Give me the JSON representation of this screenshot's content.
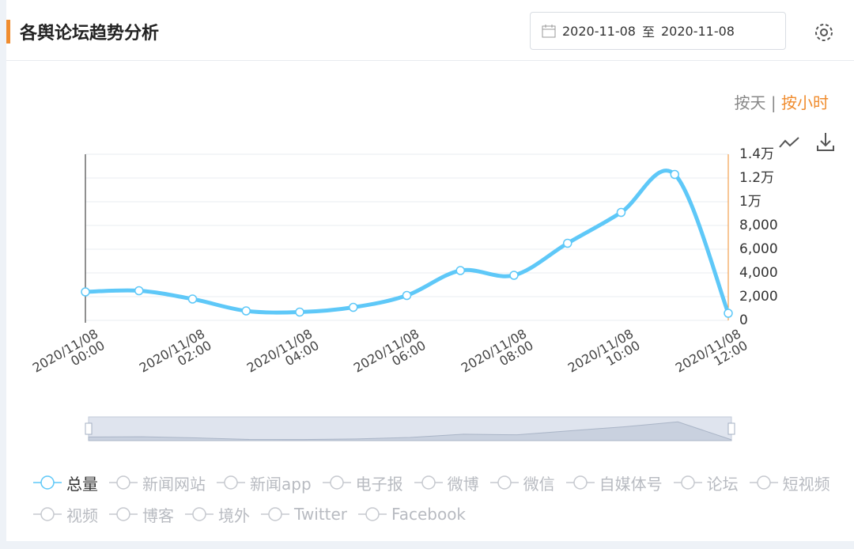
{
  "header": {
    "title": "各舆论坛趋势分析",
    "date_start": "2020-11-08",
    "date_sep": "至",
    "date_end": "2020-11-08"
  },
  "toggle": {
    "day": "按天",
    "separator": "|",
    "hour": "按小时"
  },
  "chart_data": {
    "type": "line",
    "categories": [
      "2020/11/08\n00:00",
      null,
      "2020/11/08\n02:00",
      null,
      "2020/11/08\n04:00",
      null,
      "2020/11/08\n06:00",
      null,
      "2020/11/08\n08:00",
      null,
      "2020/11/08\n10:00",
      null,
      "2020/11/08\n12:00"
    ],
    "series": [
      {
        "name": "总量",
        "color": "#5ec8f8",
        "values": [
          2400,
          2500,
          1800,
          800,
          700,
          1100,
          2100,
          4200,
          3800,
          6500,
          9100,
          12300,
          600
        ]
      },
      {
        "name": "新闻网站",
        "visible": false
      },
      {
        "name": "新闻app",
        "visible": false
      },
      {
        "name": "电子报",
        "visible": false
      },
      {
        "name": "微博",
        "visible": false
      },
      {
        "name": "微信",
        "visible": false
      },
      {
        "name": "自媒体号",
        "visible": false
      },
      {
        "name": "论坛",
        "visible": false
      },
      {
        "name": "短视频",
        "visible": false
      },
      {
        "name": "视频",
        "visible": false
      },
      {
        "name": "博客",
        "visible": false
      },
      {
        "name": "境外",
        "visible": false
      },
      {
        "name": "Twitter",
        "visible": false
      },
      {
        "name": "Facebook",
        "visible": false
      }
    ],
    "ylim": [
      0,
      14000
    ],
    "yticks": [
      0,
      {
        "value": 2000,
        "label": "2,000"
      },
      {
        "value": 4000,
        "label": "4,000"
      },
      {
        "value": 6000,
        "label": "6,000"
      },
      {
        "value": 8000,
        "label": "8,000"
      },
      {
        "value": 10000,
        "label": "1万"
      },
      {
        "value": 12000,
        "label": "1.2万"
      },
      {
        "value": 14000,
        "label": "1.4万"
      }
    ],
    "grid": true,
    "y_axis_side": "right",
    "legend_position": "bottom"
  }
}
